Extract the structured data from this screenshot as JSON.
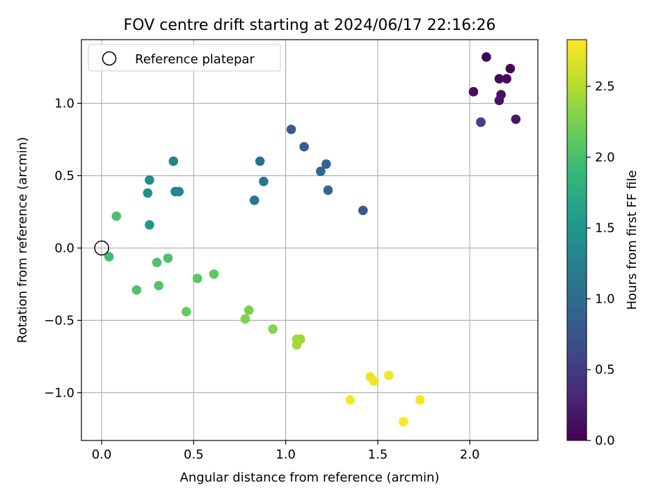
{
  "chart_data": {
    "type": "scatter",
    "title": "FOV centre drift starting at 2024/06/17 22:16:26",
    "xlabel": "Angular distance from reference (arcmin)",
    "ylabel": "Rotation from reference (arcmin)",
    "xlim": [
      -0.11,
      2.37
    ],
    "ylim": [
      -1.33,
      1.44
    ],
    "xticks": [
      0.0,
      0.5,
      1.0,
      1.5,
      2.0
    ],
    "xtick_labels": [
      "0.0",
      "0.5",
      "1.0",
      "1.5",
      "2.0"
    ],
    "yticks": [
      -1.0,
      -0.5,
      0.0,
      0.5,
      1.0
    ],
    "ytick_labels": [
      "−1.0",
      "−0.5",
      "0.0",
      "0.5",
      "1.0"
    ],
    "grid": true,
    "legend": {
      "placement": "top-left",
      "entries": [
        "Reference platepar"
      ]
    },
    "reference_point": {
      "x": 0.0,
      "y": 0.0
    },
    "colorbar": {
      "label": "Hours from first FF file",
      "range": [
        0.0,
        2.83
      ],
      "ticks": [
        0.0,
        0.5,
        1.0,
        1.5,
        2.0,
        2.5
      ],
      "tick_labels": [
        "0.0",
        "0.5",
        "1.0",
        "1.5",
        "2.0",
        "2.5"
      ],
      "colormap": "viridis",
      "colormap_stops": [
        "#440154",
        "#482878",
        "#3e4989",
        "#31688e",
        "#26828e",
        "#1f9e89",
        "#35b779",
        "#6ece58",
        "#b5de2b",
        "#fde725"
      ]
    },
    "points": [
      {
        "x": 2.09,
        "y": 1.32,
        "c": 0.03
      },
      {
        "x": 2.22,
        "y": 1.24,
        "c": 0.05
      },
      {
        "x": 2.16,
        "y": 1.17,
        "c": 0.07
      },
      {
        "x": 2.2,
        "y": 1.17,
        "c": 0.09
      },
      {
        "x": 2.02,
        "y": 1.08,
        "c": 0.11
      },
      {
        "x": 2.17,
        "y": 1.06,
        "c": 0.13
      },
      {
        "x": 2.16,
        "y": 1.02,
        "c": 0.15
      },
      {
        "x": 2.25,
        "y": 0.89,
        "c": 0.17
      },
      {
        "x": 2.06,
        "y": 0.87,
        "c": 0.3
      },
      {
        "x": 2.06,
        "y": 0.87,
        "c": 0.55
      },
      {
        "x": 1.03,
        "y": 0.82,
        "c": 0.82
      },
      {
        "x": 1.1,
        "y": 0.7,
        "c": 0.85
      },
      {
        "x": 1.22,
        "y": 0.58,
        "c": 0.88
      },
      {
        "x": 1.19,
        "y": 0.53,
        "c": 0.91
      },
      {
        "x": 1.23,
        "y": 0.4,
        "c": 0.93
      },
      {
        "x": 1.42,
        "y": 0.26,
        "c": 0.78
      },
      {
        "x": 0.86,
        "y": 0.6,
        "c": 1.05
      },
      {
        "x": 0.88,
        "y": 0.46,
        "c": 1.08
      },
      {
        "x": 0.83,
        "y": 0.33,
        "c": 1.1
      },
      {
        "x": 0.39,
        "y": 0.6,
        "c": 1.25
      },
      {
        "x": 0.4,
        "y": 0.39,
        "c": 1.28
      },
      {
        "x": 0.42,
        "y": 0.39,
        "c": 1.3
      },
      {
        "x": 0.26,
        "y": 0.47,
        "c": 1.38
      },
      {
        "x": 0.25,
        "y": 0.38,
        "c": 1.42
      },
      {
        "x": 0.26,
        "y": 0.16,
        "c": 1.5
      },
      {
        "x": 0.08,
        "y": 0.22,
        "c": 2.0
      },
      {
        "x": 0.04,
        "y": -0.06,
        "c": 1.97
      },
      {
        "x": 0.3,
        "y": -0.1,
        "c": 2.02
      },
      {
        "x": 0.36,
        "y": -0.07,
        "c": 2.03
      },
      {
        "x": 0.19,
        "y": -0.29,
        "c": 2.04
      },
      {
        "x": 0.31,
        "y": -0.26,
        "c": 2.05
      },
      {
        "x": 0.52,
        "y": -0.21,
        "c": 2.1
      },
      {
        "x": 0.61,
        "y": -0.18,
        "c": 2.12
      },
      {
        "x": 0.46,
        "y": -0.44,
        "c": 2.15
      },
      {
        "x": 0.8,
        "y": -0.43,
        "c": 2.25
      },
      {
        "x": 0.78,
        "y": -0.49,
        "c": 2.27
      },
      {
        "x": 0.93,
        "y": -0.56,
        "c": 2.3
      },
      {
        "x": 1.06,
        "y": -0.63,
        "c": 2.4
      },
      {
        "x": 1.08,
        "y": -0.63,
        "c": 2.42
      },
      {
        "x": 1.06,
        "y": -0.67,
        "c": 2.44
      },
      {
        "x": 1.46,
        "y": -0.89,
        "c": 2.75
      },
      {
        "x": 1.48,
        "y": -0.92,
        "c": 2.77
      },
      {
        "x": 1.56,
        "y": -0.88,
        "c": 2.78
      },
      {
        "x": 1.35,
        "y": -1.05,
        "c": 2.79
      },
      {
        "x": 1.73,
        "y": -1.05,
        "c": 2.8
      },
      {
        "x": 1.64,
        "y": -1.2,
        "c": 2.82
      }
    ]
  }
}
